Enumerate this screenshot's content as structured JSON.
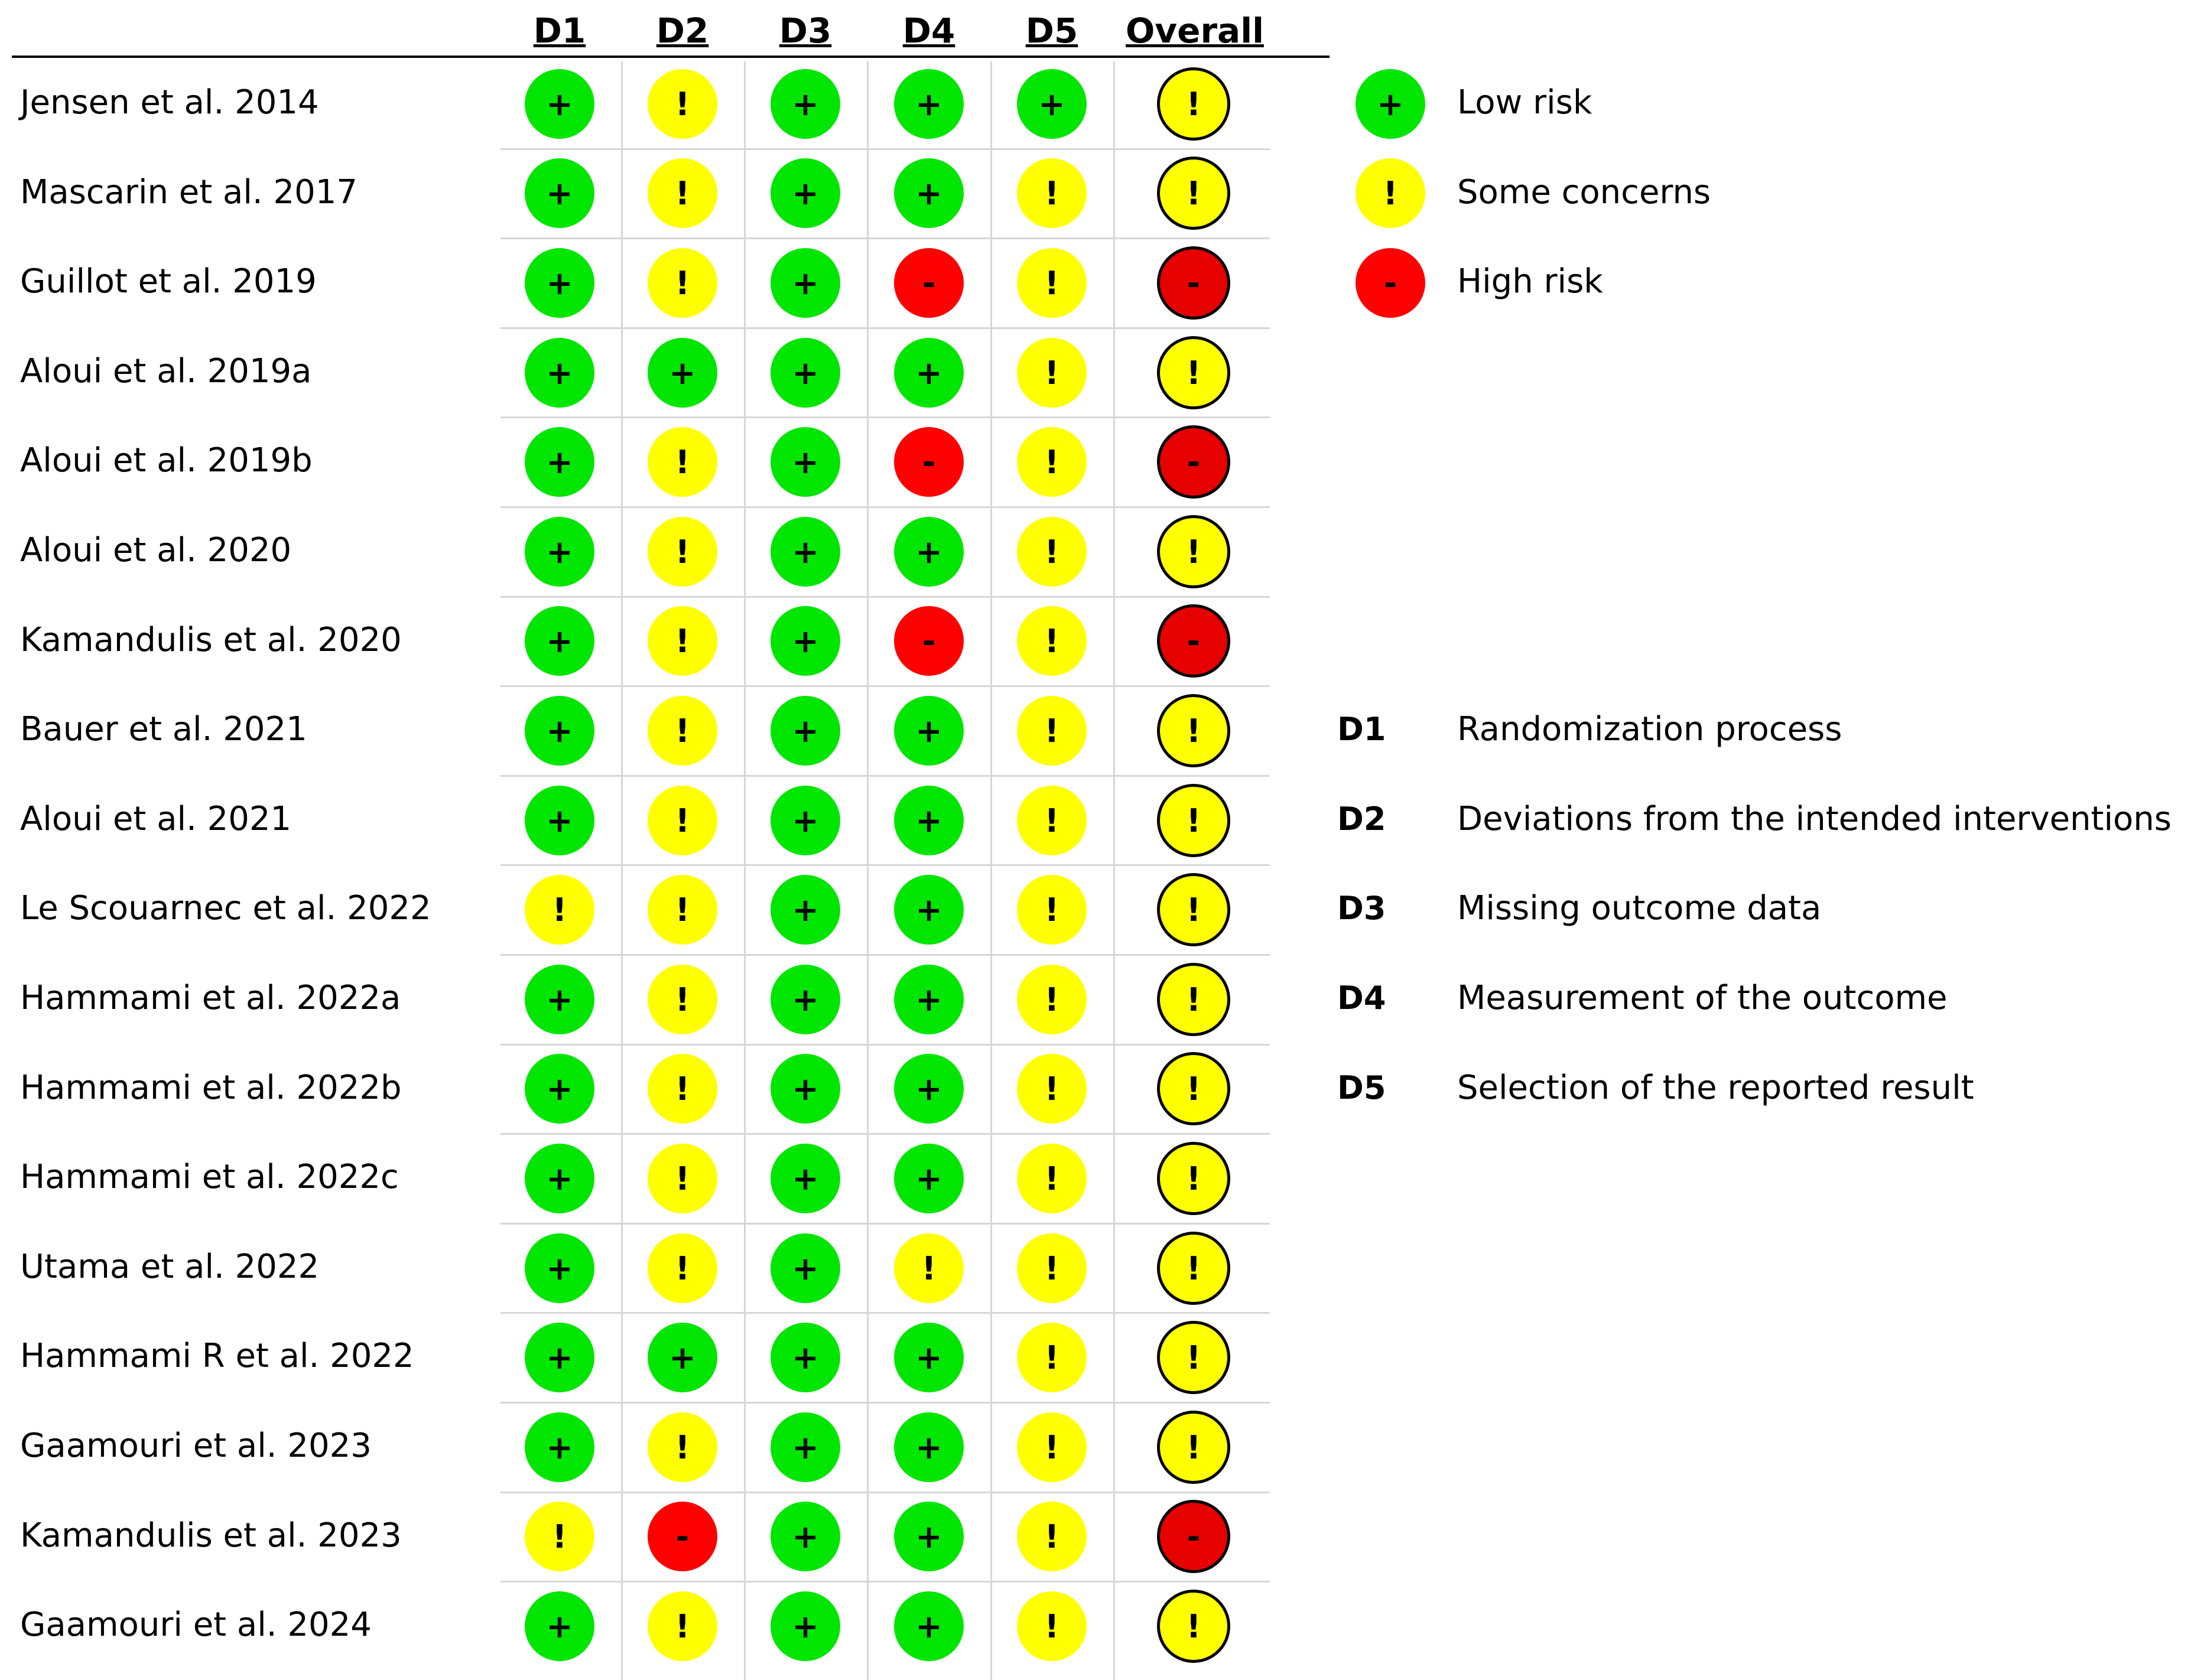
{
  "columns": [
    "D1",
    "D2",
    "D3",
    "D4",
    "D5",
    "Overall"
  ],
  "judgements": {
    "L": {
      "symbol": "+",
      "color": "#00e600",
      "label": "Low risk"
    },
    "S": {
      "symbol": "!",
      "color": "#ffff00",
      "label": "Some concerns"
    },
    "H": {
      "symbol": "-",
      "color": "#ff0000",
      "label": "High risk"
    }
  },
  "legend_order": [
    "L",
    "S",
    "H"
  ],
  "overall_colors": {
    "L": "#00e600",
    "S": "#ffff00",
    "H": "#e60000"
  },
  "studies": [
    {
      "name": "Jensen et al. 2014",
      "ratings": [
        "L",
        "S",
        "L",
        "L",
        "L",
        "S"
      ]
    },
    {
      "name": "Mascarin et al. 2017",
      "ratings": [
        "L",
        "S",
        "L",
        "L",
        "S",
        "S"
      ]
    },
    {
      "name": "Guillot et  al. 2019",
      "ratings": [
        "L",
        "S",
        "L",
        "H",
        "S",
        "H"
      ]
    },
    {
      "name": "Aloui et al. 2019a",
      "ratings": [
        "L",
        "L",
        "L",
        "L",
        "S",
        "S"
      ]
    },
    {
      "name": "Aloui et al. 2019b",
      "ratings": [
        "L",
        "S",
        "L",
        "H",
        "S",
        "H"
      ]
    },
    {
      "name": "Aloui et al. 2020",
      "ratings": [
        "L",
        "S",
        "L",
        "L",
        "S",
        "S"
      ]
    },
    {
      "name": "Kamandulis et al. 2020",
      "ratings": [
        "L",
        "S",
        "L",
        "H",
        "S",
        "H"
      ]
    },
    {
      "name": "Bauer et al. 2021",
      "ratings": [
        "L",
        "S",
        "L",
        "L",
        "S",
        "S"
      ]
    },
    {
      "name": "Aloui et al. 2021",
      "ratings": [
        "L",
        "S",
        "L",
        "L",
        "S",
        "S"
      ]
    },
    {
      "name": "Le Scouarnec et al. 2022",
      "ratings": [
        "S",
        "S",
        "L",
        "L",
        "S",
        "S"
      ]
    },
    {
      "name": "Hammami et al. 2022a",
      "ratings": [
        "L",
        "S",
        "L",
        "L",
        "S",
        "S"
      ]
    },
    {
      "name": "Hammami et al. 2022b",
      "ratings": [
        "L",
        "S",
        "L",
        "L",
        "S",
        "S"
      ]
    },
    {
      "name": "Hammami et al. 2022c",
      "ratings": [
        "L",
        "S",
        "L",
        "L",
        "S",
        "S"
      ]
    },
    {
      "name": "Utama et al. 2022",
      "ratings": [
        "L",
        "S",
        "L",
        "S",
        "S",
        "S"
      ]
    },
    {
      "name": "Hammami R et al. 2022",
      "ratings": [
        "L",
        "L",
        "L",
        "L",
        "S",
        "S"
      ]
    },
    {
      "name": "Gaamouri et al. 2023",
      "ratings": [
        "L",
        "S",
        "L",
        "L",
        "S",
        "S"
      ]
    },
    {
      "name": "Kamandulis et al. 2023",
      "ratings": [
        "S",
        "H",
        "L",
        "L",
        "S",
        "H"
      ]
    },
    {
      "name": "Gaamouri et al. 2024",
      "ratings": [
        "L",
        "S",
        "L",
        "L",
        "S",
        "S"
      ]
    }
  ],
  "domain_legend": [
    {
      "code": "D1",
      "text": "Randomization process"
    },
    {
      "code": "D2",
      "text": "Deviations from the intended interventions"
    },
    {
      "code": "D3",
      "text": "Missing outcome data"
    },
    {
      "code": "D4",
      "text": "Measurement of the outcome"
    },
    {
      "code": "D5",
      "text": "Selection of the reported result"
    }
  ]
}
